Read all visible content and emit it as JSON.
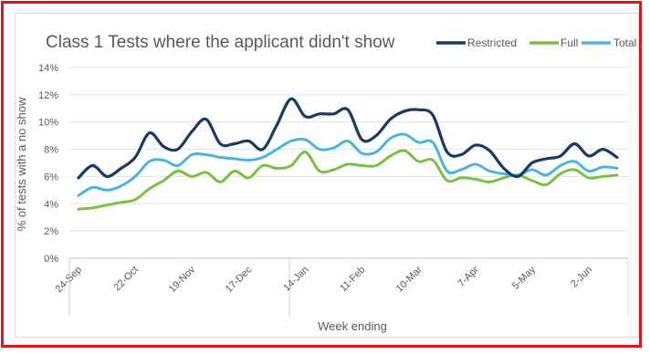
{
  "chart_data": {
    "type": "line",
    "title": "Class 1 Tests where the applicant didn't show",
    "xlabel": "Week ending",
    "ylabel": "% of tests with a no show",
    "ylim": [
      0,
      14
    ],
    "yticks": [
      "0%",
      "2%",
      "4%",
      "6%",
      "8%",
      "10%",
      "12%",
      "14%"
    ],
    "yticks_values": [
      0,
      2,
      4,
      6,
      8,
      10,
      12,
      14
    ],
    "xtick_labels": [
      "24-Sep",
      "22-Oct",
      "19-Nov",
      "17-Dec",
      "14-Jan",
      "11-Feb",
      "10-Mar",
      "7-Apr",
      "5-May",
      "2-Jun"
    ],
    "xtick_index": [
      0,
      4,
      8,
      12,
      16,
      20,
      24,
      28,
      32,
      36
    ],
    "grid": true,
    "legend_position": "top-right",
    "series": [
      {
        "name": "Restricted",
        "color": "#1b3a63",
        "values": [
          5.9,
          6.8,
          6.0,
          6.6,
          7.4,
          9.2,
          8.2,
          8.0,
          9.3,
          10.2,
          8.4,
          8.4,
          8.6,
          8.0,
          9.8,
          11.7,
          10.4,
          10.6,
          10.6,
          10.9,
          8.7,
          9.0,
          10.2,
          10.8,
          10.9,
          10.5,
          7.8,
          7.6,
          8.3,
          7.9,
          6.6,
          6.0,
          7.0,
          7.3,
          7.5,
          8.4,
          7.5,
          8.0,
          7.4
        ]
      },
      {
        "name": "Full",
        "color": "#7ac143",
        "values": [
          3.6,
          3.7,
          3.9,
          4.1,
          4.3,
          5.1,
          5.7,
          6.4,
          6.0,
          6.3,
          5.6,
          6.4,
          5.9,
          6.8,
          6.6,
          6.8,
          7.8,
          6.4,
          6.5,
          6.9,
          6.8,
          6.8,
          7.5,
          7.9,
          7.1,
          7.2,
          5.7,
          5.9,
          5.8,
          5.6,
          5.9,
          6.1,
          5.7,
          5.4,
          6.2,
          6.5,
          5.9,
          6.0,
          6.1
        ]
      },
      {
        "name": "Total",
        "color": "#4ab5dc",
        "values": [
          4.6,
          5.2,
          5.0,
          5.3,
          6.0,
          7.1,
          7.2,
          6.8,
          7.6,
          7.6,
          7.4,
          7.3,
          7.2,
          7.4,
          8.0,
          8.6,
          8.7,
          8.0,
          8.1,
          8.6,
          7.7,
          7.8,
          8.8,
          9.1,
          8.5,
          8.5,
          6.4,
          6.5,
          6.9,
          6.4,
          6.2,
          6.1,
          6.5,
          6.1,
          6.8,
          7.1,
          6.4,
          6.7,
          6.6
        ]
      }
    ]
  }
}
